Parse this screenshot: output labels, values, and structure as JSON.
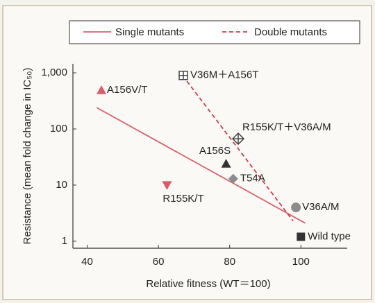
{
  "chart_data": {
    "type": "scatter",
    "x_label": "Relative fitness (WT＝100)",
    "y_label": "Resistance (mean fold change in IC₅₀)",
    "xlim": [
      36,
      113
    ],
    "xticks": [
      40,
      60,
      80,
      100
    ],
    "ylim": [
      0.75,
      1450
    ],
    "ylog": true,
    "yticks": [
      {
        "value": 1000,
        "label": "1,000"
      },
      100,
      10,
      1
    ],
    "legend": "top",
    "lines": [
      {
        "name": "Single mutants",
        "color": "#d9606a",
        "dash": false,
        "x": [
          42.7,
          101.2
        ],
        "y": [
          240,
          2.1
        ]
      },
      {
        "name": "Double mutants",
        "color": "#d03a48",
        "dash": true,
        "x": [
          68,
          97.8
        ],
        "y": [
          710,
          2.3
        ]
      }
    ],
    "points": [
      {
        "label": "A156V/T",
        "x": 44,
        "y": 490,
        "marker": "triangle",
        "color": "#d95b66"
      },
      {
        "label": "V36M＋A156T",
        "x": 67,
        "y": 900,
        "marker": "square-cross",
        "color": "#444444"
      },
      {
        "label": "R155K/T＋V36A/M",
        "x": 82.4,
        "y": 67,
        "marker": "diamond-cross",
        "color": "#444444"
      },
      {
        "label": "A156S",
        "x": 79,
        "y": 24,
        "marker": "triangle",
        "color": "#333333"
      },
      {
        "label": "T54A",
        "x": 81,
        "y": 13,
        "marker": "diamond",
        "color": "#8c8c8c"
      },
      {
        "label": "R155K/T",
        "x": 62.4,
        "y": 10,
        "marker": "triangle-down",
        "color": "#d95b66"
      },
      {
        "label": "V36A/M",
        "x": 98.6,
        "y": 4,
        "marker": "circle",
        "color": "#8c8c8c"
      },
      {
        "label": "Wild type",
        "x": 100,
        "y": 1.2,
        "marker": "square",
        "color": "#333333"
      }
    ]
  }
}
